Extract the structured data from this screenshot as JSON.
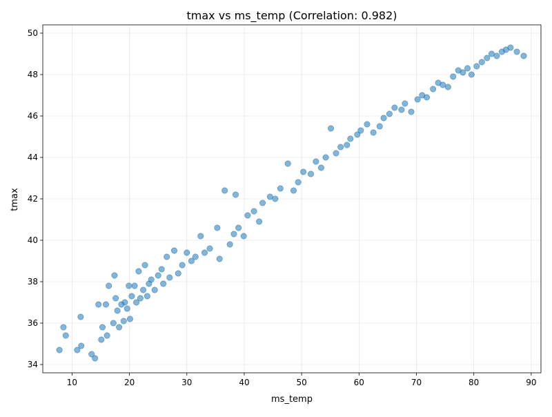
{
  "chart_data": {
    "type": "scatter",
    "title": "tmax vs ms_temp (Correlation: 0.982)",
    "xlabel": "ms_temp",
    "ylabel": "tmax",
    "xlim": [
      4.9,
      91.7
    ],
    "ylim": [
      33.6,
      50.4
    ],
    "xticks": [
      10,
      20,
      30,
      40,
      50,
      60,
      70,
      80,
      90
    ],
    "yticks": [
      34,
      36,
      38,
      40,
      42,
      44,
      46,
      48,
      50
    ],
    "grid": true,
    "marker_color": "#1f77b4",
    "series": [
      {
        "x": [
          7.8,
          8.5,
          8.9,
          10.9,
          11.5,
          11.6,
          13.4,
          14.0,
          14.6,
          15.1,
          15.3,
          15.9,
          16.1,
          16.4,
          17.2,
          17.4,
          17.6,
          17.9,
          18.2,
          18.6,
          19.0,
          19.2,
          19.6,
          19.9,
          20.1,
          20.4,
          20.9,
          21.2,
          21.6,
          21.9,
          22.4,
          22.7,
          23.1,
          23.4,
          23.8,
          24.4,
          25.0,
          25.6,
          25.9,
          26.5,
          27.0,
          27.8,
          28.5,
          29.2,
          30.0,
          30.8,
          31.5,
          32.4,
          33.1,
          34.0,
          35.3,
          35.7,
          36.6,
          37.5,
          38.2,
          38.5,
          39.0,
          39.9,
          40.6,
          41.7,
          42.6,
          43.2,
          44.5,
          45.4,
          46.3,
          47.6,
          48.6,
          49.4,
          50.3,
          51.6,
          52.5,
          53.4,
          54.2,
          55.1,
          56.0,
          56.8,
          57.9,
          58.5,
          59.7,
          60.3,
          61.4,
          62.5,
          63.6,
          64.3,
          65.3,
          66.2,
          67.4,
          68.0,
          69.1,
          70.2,
          71.0,
          71.8,
          72.9,
          73.8,
          74.6,
          75.5,
          76.4,
          77.3,
          78.1,
          78.9,
          79.6,
          80.5,
          81.4,
          82.3,
          83.1,
          84.0,
          84.9,
          85.6,
          86.4,
          87.5,
          88.7
        ],
        "y": [
          34.7,
          35.8,
          35.4,
          34.7,
          36.3,
          34.9,
          34.5,
          34.3,
          36.9,
          35.2,
          35.8,
          36.9,
          35.4,
          37.8,
          36.0,
          38.3,
          37.2,
          36.6,
          35.8,
          36.9,
          36.1,
          37.0,
          36.7,
          37.8,
          36.2,
          37.3,
          37.8,
          37.0,
          38.5,
          37.2,
          37.6,
          38.8,
          37.3,
          37.9,
          38.1,
          37.6,
          38.3,
          38.6,
          37.9,
          39.2,
          38.2,
          39.5,
          38.4,
          38.8,
          39.4,
          39.0,
          39.2,
          40.2,
          39.4,
          39.6,
          40.6,
          39.1,
          42.4,
          39.8,
          40.3,
          42.2,
          40.6,
          40.2,
          41.2,
          41.4,
          40.9,
          41.8,
          42.1,
          42.0,
          42.5,
          43.7,
          42.4,
          42.8,
          43.3,
          43.2,
          43.8,
          43.5,
          44.0,
          45.4,
          44.2,
          44.5,
          44.6,
          44.9,
          45.1,
          45.3,
          45.6,
          45.2,
          45.5,
          45.9,
          46.1,
          46.4,
          46.3,
          46.6,
          46.2,
          46.8,
          47.0,
          46.9,
          47.3,
          47.6,
          47.5,
          47.4,
          47.9,
          48.2,
          48.1,
          48.3,
          48.0,
          48.4,
          48.6,
          48.8,
          49.0,
          48.9,
          49.1,
          49.2,
          49.3,
          49.1,
          48.9
        ]
      }
    ]
  }
}
